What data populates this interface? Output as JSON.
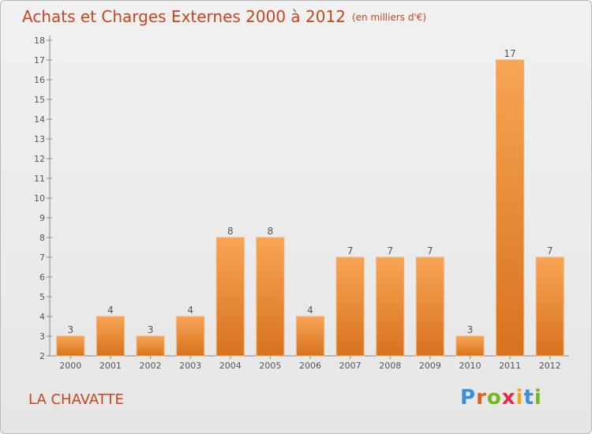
{
  "title": "Achats et Charges Externes 2000 à 2012",
  "unit": "(en milliers d'€)",
  "commune": "LA CHAVATTE",
  "logo": {
    "letters": [
      "P",
      "r",
      "o",
      "x",
      "i",
      "t",
      "i"
    ],
    "colors": [
      "#3a8fd6",
      "#e85a1c",
      "#7ab51d",
      "#e82a4a",
      "#f0a818",
      "#3a8fd6",
      "#7ab51d"
    ]
  },
  "colors": {
    "title": "#c8461e",
    "bar_top": "#f7a555",
    "bar_bottom": "#d7721f",
    "axis": "#888888"
  },
  "chart_data": {
    "type": "bar",
    "title": "Achats et Charges Externes 2000 à 2012",
    "categories": [
      "2000",
      "2001",
      "2002",
      "2003",
      "2004",
      "2005",
      "2006",
      "2007",
      "2008",
      "2009",
      "2010",
      "2011",
      "2012"
    ],
    "values": [
      3,
      4,
      3,
      4,
      8,
      8,
      4,
      7,
      7,
      7,
      3,
      17,
      7
    ],
    "ylim": [
      2,
      18
    ],
    "yticks": [
      2,
      3,
      4,
      5,
      6,
      7,
      8,
      9,
      10,
      11,
      12,
      13,
      14,
      15,
      16,
      17,
      18
    ],
    "grid": false,
    "legend": "none"
  }
}
